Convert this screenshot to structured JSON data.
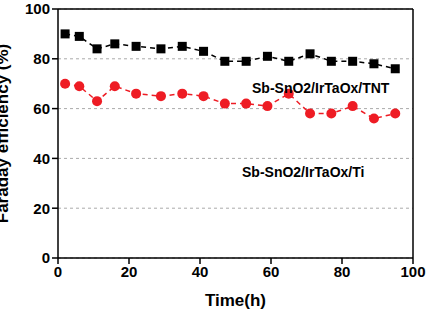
{
  "chart_data": {
    "type": "line",
    "x_label": "Time(h)",
    "y_label": "Faraday efficiency (%)",
    "xlim": [
      0,
      100
    ],
    "xticks": [
      0,
      20,
      40,
      60,
      80,
      100
    ],
    "ylim": [
      0,
      100
    ],
    "yticks": [
      0,
      20,
      40,
      60,
      80,
      100
    ],
    "grid": true,
    "x": [
      2,
      6,
      11,
      16,
      22,
      29,
      35,
      41,
      47,
      53,
      59,
      65,
      71,
      77,
      83,
      89,
      95
    ],
    "series": [
      {
        "name": "Sb-SnO2/IrTaOx/TNT",
        "color": "#000000",
        "marker": "square",
        "line_style": "dashed",
        "values": [
          90,
          89,
          84,
          86,
          85,
          84,
          85,
          83,
          79,
          79,
          81,
          79,
          82,
          79,
          79,
          78,
          76
        ]
      },
      {
        "name": "Sb-SnO2/IrTaOx/Ti",
        "color": "#ee1c24",
        "marker": "circle",
        "line_style": "dashed",
        "values": [
          70,
          69,
          63,
          69,
          66,
          65,
          66,
          65,
          62,
          62,
          61,
          66,
          58,
          58,
          61,
          56,
          58
        ]
      }
    ]
  }
}
